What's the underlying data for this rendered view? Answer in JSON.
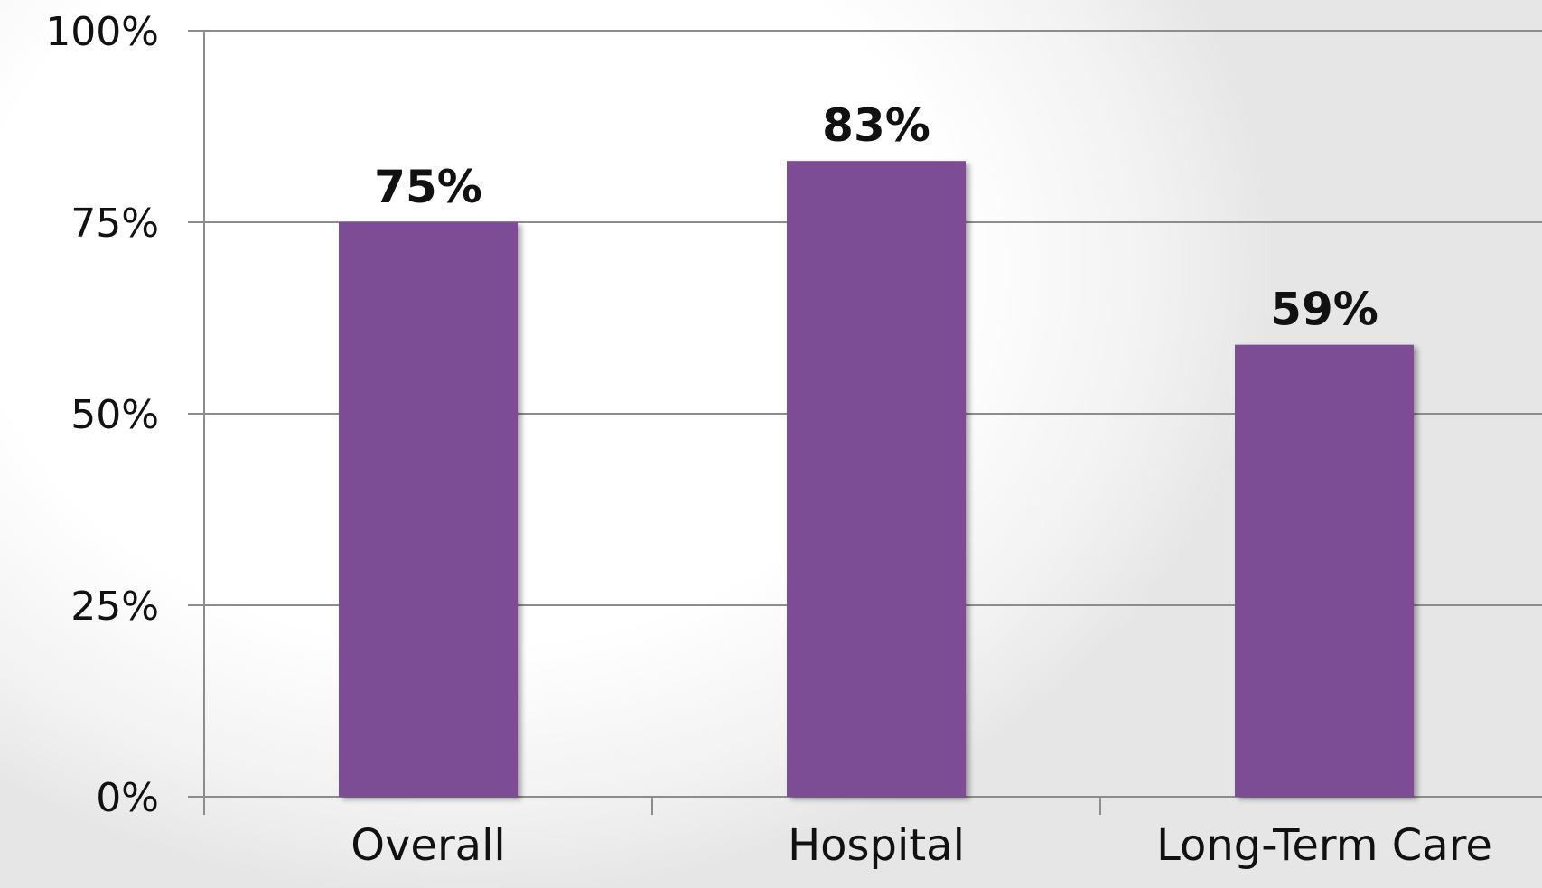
{
  "chart_data": {
    "type": "bar",
    "title": "",
    "xlabel": "",
    "ylabel": "",
    "categories": [
      "Overall",
      "Hospital",
      "Long-Term Care"
    ],
    "values": [
      75,
      83,
      59
    ],
    "data_labels": [
      "75%",
      "83%",
      "59%"
    ],
    "ylim": [
      0,
      100
    ],
    "yticks": [
      0,
      25,
      50,
      75,
      100
    ],
    "ytick_labels": [
      "0%",
      "25%",
      "50%",
      "75%",
      "100%"
    ],
    "grid": true,
    "legend": "none",
    "bar_color": "#7b4d95"
  }
}
